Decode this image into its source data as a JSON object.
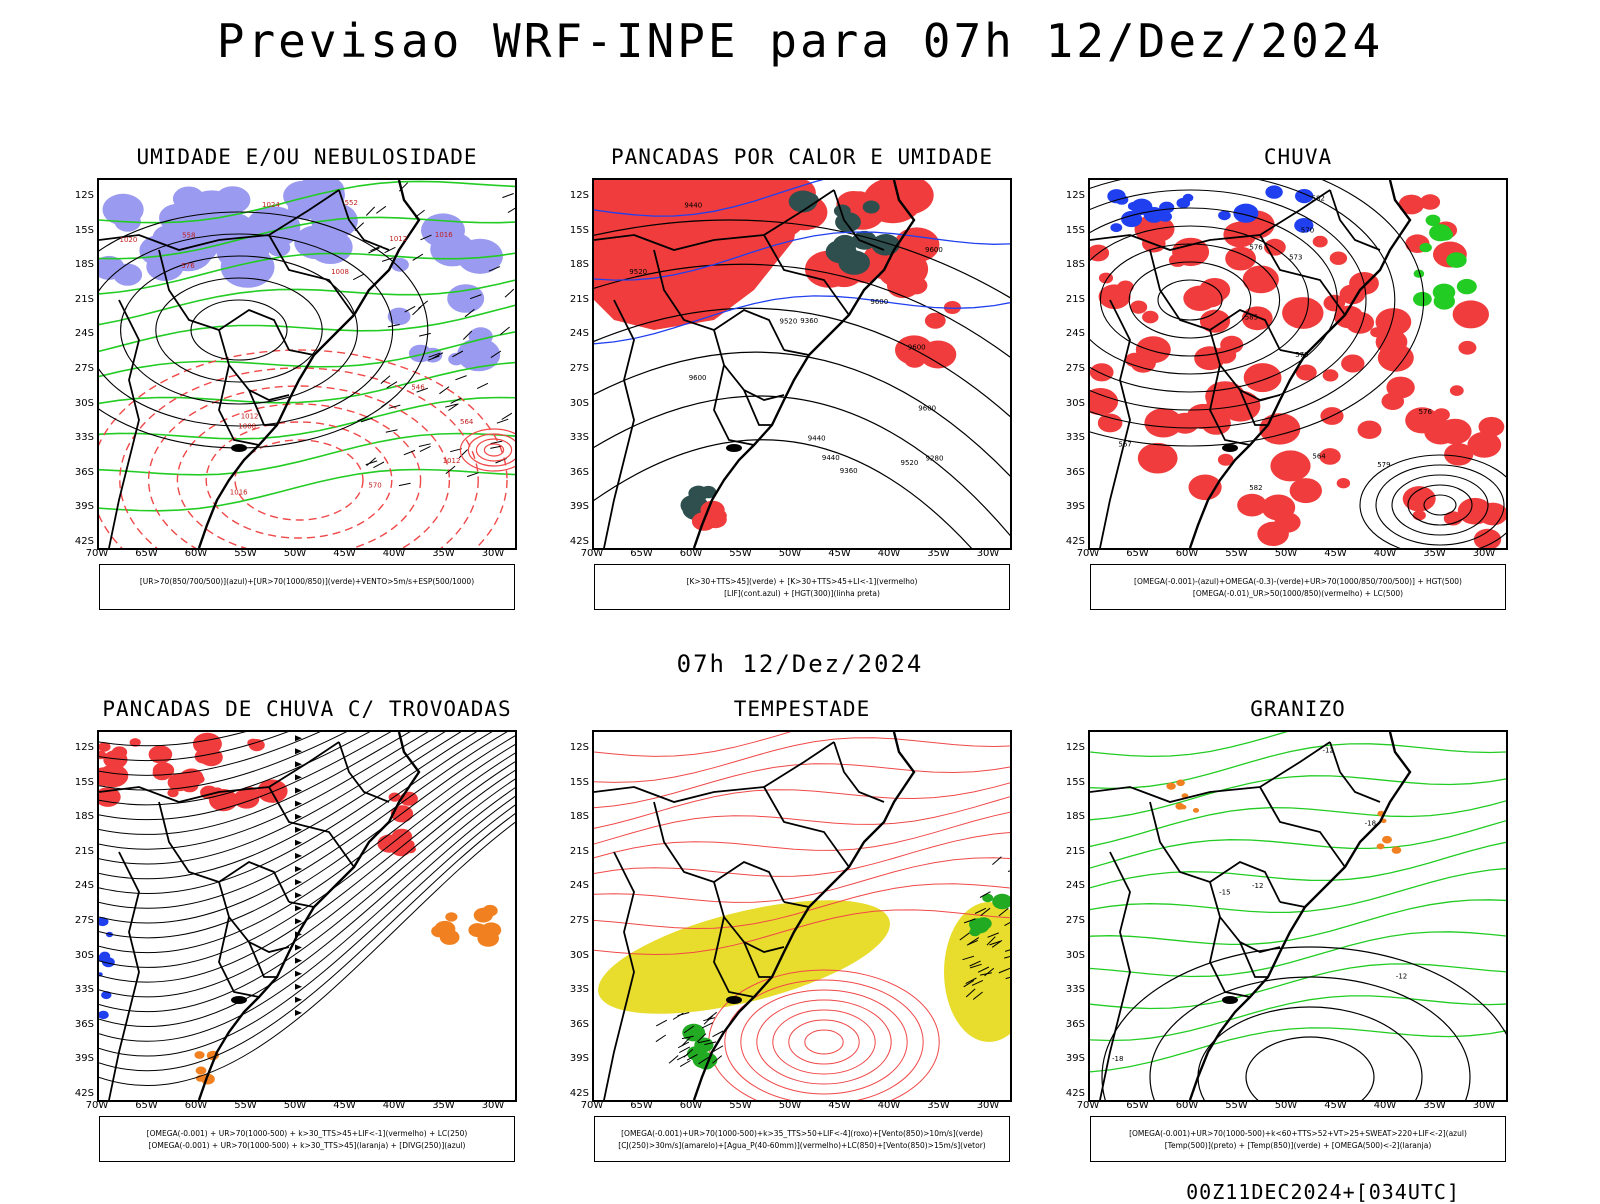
{
  "header": {
    "title": "Previsao WRF-INPE  para 07h 12/Dez/2024",
    "mid_title": "07h 12/Dez/2024",
    "footer": "00Z11DEC2024+[034UTC]"
  },
  "axes": {
    "lat_labels": [
      "12S",
      "15S",
      "18S",
      "21S",
      "24S",
      "27S",
      "30S",
      "33S",
      "36S",
      "39S",
      "42S"
    ],
    "lon_labels": [
      "70W",
      "65W",
      "60W",
      "55W",
      "50W",
      "45W",
      "40W",
      "35W",
      "30W"
    ]
  },
  "colors": {
    "blue_fill": "#9a9af0",
    "red_fill": "#f03c3c",
    "green_line": "#22cc22",
    "dark_teal": "#2f4f4f",
    "yellow_fill": "#e8dc2c",
    "orange": "#f08020",
    "blue_line": "#2040f0",
    "red_line": "#f04848"
  },
  "panels": [
    {
      "id": "umidade",
      "title": "UMIDADE E/OU NEBULOSIDADE",
      "legend": [
        "[UR>70(850/700/500)](azul)+[UR>70(1000/850)](verde)+VENTO>5m/s+ESP(500/1000)"
      ],
      "contour_labels": [
        "1008",
        "1012",
        "1012",
        "1016",
        "1016",
        "1020",
        "1024",
        "570",
        "576",
        "564",
        "558",
        "552",
        "546",
        "1012",
        "1008"
      ]
    },
    {
      "id": "pancadas_calor",
      "title": "PANCADAS POR CALOR E UMIDADE",
      "legend": [
        "[K>30+TTS>45](verde) + [K>30+TTS>45+LI<-1](vermelho)",
        "[LIF](cont.azul) + [HGT(300)](linha preta)"
      ],
      "contour_labels": [
        "9600",
        "9600",
        "9600",
        "9600",
        "9520",
        "9520",
        "9440",
        "9440",
        "9360",
        "9280",
        "9600",
        "9520",
        "9440",
        "9360"
      ]
    },
    {
      "id": "chuva",
      "title": "CHUVA",
      "legend": [
        "[OMEGA(-0.001)-(azul)+OMEGA(-0.3)-(verde)+UR>70(1000/850/700/500)] + HGT(500)",
        "[OMEGA(-0.01)_UR>50(1000/850)(vermelho) + LC(500)"
      ],
      "contour_labels": [
        "582",
        "579",
        "576",
        "573",
        "570",
        "567",
        "564",
        "576",
        "579",
        "582",
        "585"
      ]
    },
    {
      "id": "pancadas_trovoadas",
      "title": "PANCADAS DE CHUVA C/ TROVOADAS",
      "legend": [
        "[OMEGA(-0.001) + UR>70(1000-500) + k>30_TTS>45+LIF<-1](vermelho) + LC(250)",
        "[OMEGA(-0.001) + UR>70(1000-500) + k>30_TTS>45](laranja) + [DIVG(250)](azul)"
      ],
      "contour_labels": []
    },
    {
      "id": "tempestade",
      "title": "TEMPESTADE",
      "legend": [
        "[OMEGA(-0.001)+UR>70(1000-500)+k>35_TTS>50+LIF<-4](roxo)+[Vento(850)>10m/s](verde)",
        "[CJ(250)>30m/s](amarelo)+[Agua_P(40-60mm)](vermelho)+LC(850)+[Vento(850)>15m/s](vetor)"
      ],
      "contour_labels": []
    },
    {
      "id": "granizo",
      "title": "GRANIZO",
      "legend": [
        "[OMEGA(-0.001)+UR>70(1000-500)+k<60+TTS>52+VT>25+SWEAT>220+LIF<-2](azul)",
        "[Temp(500)](preto) + [Temp(850)](verde) + [OMEGA(500)<-2](laranja)"
      ],
      "contour_labels": [
        "-12",
        "-12",
        "-15",
        "-18",
        "-18",
        "-12"
      ]
    }
  ]
}
